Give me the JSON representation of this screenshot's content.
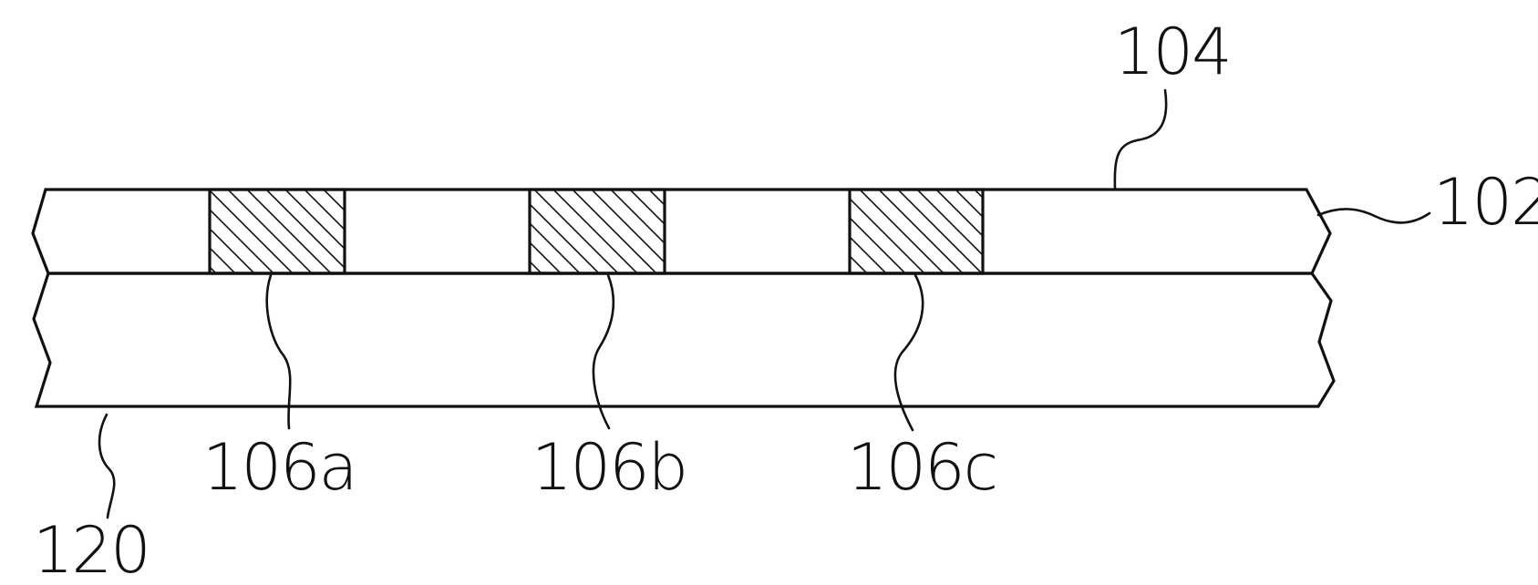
{
  "figure": {
    "colors": {
      "ink": "#111111",
      "background": "#ffffff"
    },
    "labels": {
      "layer_top": "102",
      "top_surface": "104",
      "region_a": "106a",
      "region_b": "106b",
      "region_c": "106c",
      "substrate": "120"
    }
  }
}
